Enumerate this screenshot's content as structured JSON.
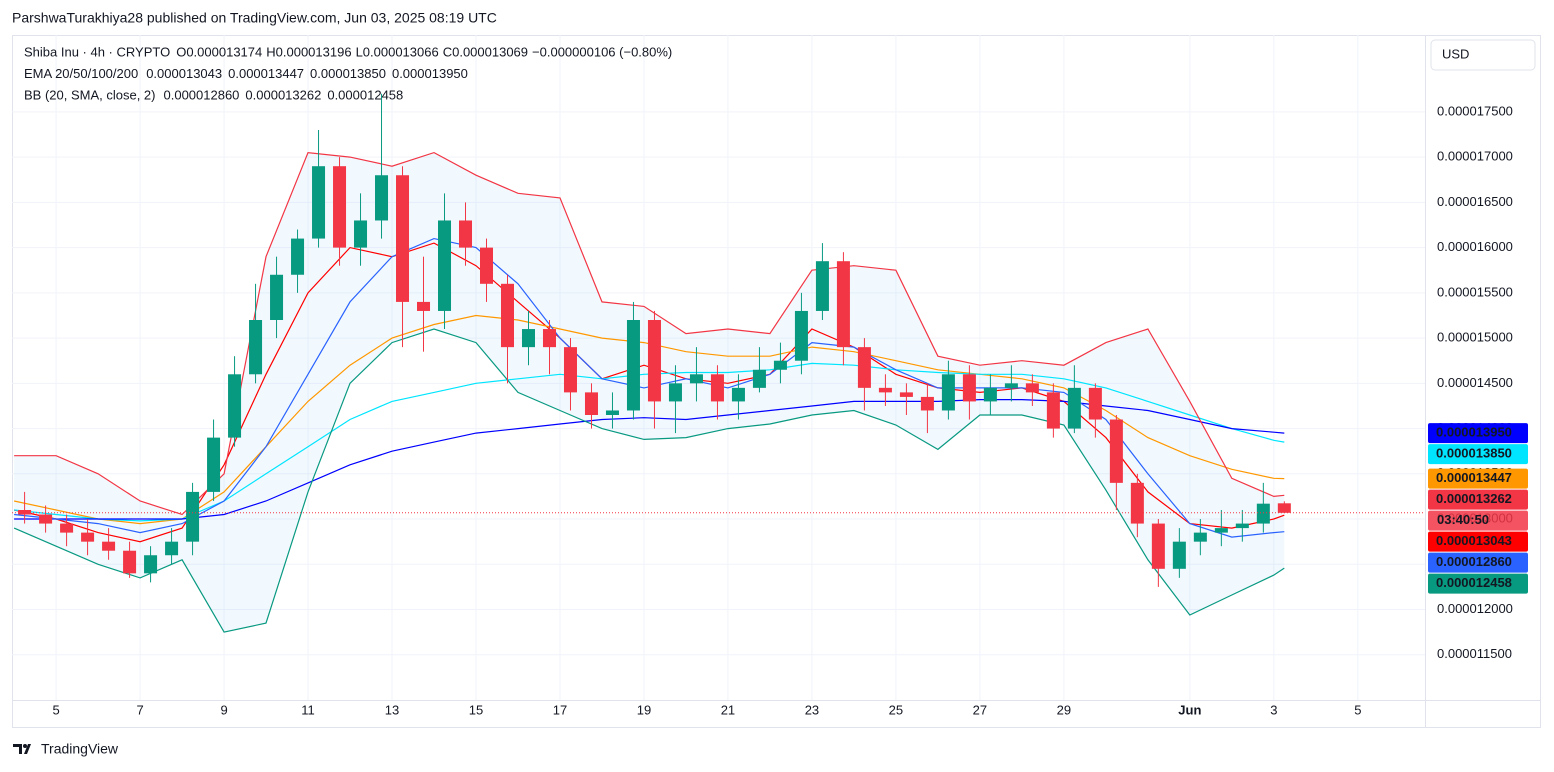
{
  "header": {
    "published": "ParshwaTurakhiya28 published on TradingView.com, Jun 03, 2025 08:19 UTC",
    "currency": "USD",
    "brand": "TradingView"
  },
  "chart_data": {
    "type": "candlestick",
    "title": "Shiba Inu · 4h · CRYPTO",
    "ohlc_legend": [
      {
        "key": "O",
        "value": "0.000013174"
      },
      {
        "key": "H",
        "value": "0.000013196"
      },
      {
        "key": "L",
        "value": "0.000013066"
      },
      {
        "key": "C",
        "value": "0.000013069"
      }
    ],
    "change": "−0.000000106 (−0.80%)",
    "countdown": "03:40:50",
    "up_color": "#089981",
    "down_color": "#f23645",
    "x": [
      4.25,
      4.75,
      5.25,
      5.75,
      6.25,
      6.75,
      7.25,
      7.75,
      8.25,
      8.75,
      9.25,
      9.75,
      10.25,
      10.75,
      11.25,
      11.75,
      12.25,
      12.75,
      13.25,
      13.75,
      14.25,
      14.75,
      15.25,
      15.75,
      16.25,
      16.75,
      17.25,
      17.75,
      18.25,
      18.75,
      19.25,
      19.75,
      20.25,
      20.75,
      21.25,
      21.75,
      22.25,
      22.75,
      23.25,
      23.75,
      24.25,
      24.75,
      25.25,
      25.75,
      26.25,
      26.75,
      27.25,
      27.75,
      28.25,
      28.75,
      29.25,
      29.75,
      30.25,
      30.75,
      31.25,
      31.75,
      32.25,
      32.75,
      33.25,
      33.75,
      34.25
    ],
    "open": [
      1.31e-05,
      1.305e-05,
      1.295e-05,
      1.285e-05,
      1.275e-05,
      1.265e-05,
      1.24e-05,
      1.26e-05,
      1.275e-05,
      1.33e-05,
      1.39e-05,
      1.46e-05,
      1.52e-05,
      1.57e-05,
      1.61e-05,
      1.69e-05,
      1.6e-05,
      1.63e-05,
      1.68e-05,
      1.54e-05,
      1.53e-05,
      1.63e-05,
      1.6e-05,
      1.56e-05,
      1.49e-05,
      1.51e-05,
      1.49e-05,
      1.44e-05,
      1.415e-05,
      1.42e-05,
      1.52e-05,
      1.43e-05,
      1.45e-05,
      1.46e-05,
      1.43e-05,
      1.445e-05,
      1.465e-05,
      1.475e-05,
      1.53e-05,
      1.585e-05,
      1.49e-05,
      1.445e-05,
      1.44e-05,
      1.435e-05,
      1.42e-05,
      1.46e-05,
      1.43e-05,
      1.445e-05,
      1.45e-05,
      1.44e-05,
      1.4e-05,
      1.445e-05,
      1.41e-05,
      1.34e-05,
      1.295e-05,
      1.245e-05,
      1.275e-05,
      1.285e-05,
      1.29e-05,
      1.295e-05,
      1.3174e-05
    ],
    "high": [
      1.33e-05,
      1.315e-05,
      1.305e-05,
      1.3e-05,
      1.29e-05,
      1.275e-05,
      1.27e-05,
      1.29e-05,
      1.34e-05,
      1.41e-05,
      1.48e-05,
      1.56e-05,
      1.59e-05,
      1.62e-05,
      1.73e-05,
      1.7e-05,
      1.66e-05,
      1.77e-05,
      1.69e-05,
      1.59e-05,
      1.66e-05,
      1.65e-05,
      1.61e-05,
      1.57e-05,
      1.53e-05,
      1.52e-05,
      1.5e-05,
      1.45e-05,
      1.44e-05,
      1.54e-05,
      1.53e-05,
      1.47e-05,
      1.49e-05,
      1.47e-05,
      1.46e-05,
      1.49e-05,
      1.495e-05,
      1.55e-05,
      1.605e-05,
      1.595e-05,
      1.5e-05,
      1.46e-05,
      1.45e-05,
      1.45e-05,
      1.475e-05,
      1.47e-05,
      1.46e-05,
      1.47e-05,
      1.46e-05,
      1.45e-05,
      1.47e-05,
      1.45e-05,
      1.415e-05,
      1.35e-05,
      1.3e-05,
      1.29e-05,
      1.3e-05,
      1.31e-05,
      1.31e-05,
      1.34e-05,
      1.3196e-05
    ],
    "low": [
      1.295e-05,
      1.285e-05,
      1.27e-05,
      1.26e-05,
      1.255e-05,
      1.235e-05,
      1.23e-05,
      1.25e-05,
      1.26e-05,
      1.32e-05,
      1.38e-05,
      1.45e-05,
      1.5e-05,
      1.55e-05,
      1.6e-05,
      1.58e-05,
      1.58e-05,
      1.61e-05,
      1.49e-05,
      1.485e-05,
      1.51e-05,
      1.58e-05,
      1.54e-05,
      1.45e-05,
      1.47e-05,
      1.46e-05,
      1.42e-05,
      1.4e-05,
      1.4e-05,
      1.41e-05,
      1.4e-05,
      1.395e-05,
      1.43e-05,
      1.41e-05,
      1.41e-05,
      1.44e-05,
      1.45e-05,
      1.46e-05,
      1.52e-05,
      1.47e-05,
      1.42e-05,
      1.425e-05,
      1.415e-05,
      1.395e-05,
      1.41e-05,
      1.41e-05,
      1.415e-05,
      1.43e-05,
      1.425e-05,
      1.39e-05,
      1.395e-05,
      1.39e-05,
      1.31e-05,
      1.28e-05,
      1.225e-05,
      1.235e-05,
      1.26e-05,
      1.27e-05,
      1.275e-05,
      1.285e-05,
      1.3066e-05
    ],
    "close": [
      1.305e-05,
      1.295e-05,
      1.285e-05,
      1.275e-05,
      1.265e-05,
      1.24e-05,
      1.26e-05,
      1.275e-05,
      1.33e-05,
      1.39e-05,
      1.46e-05,
      1.52e-05,
      1.57e-05,
      1.61e-05,
      1.69e-05,
      1.6e-05,
      1.63e-05,
      1.68e-05,
      1.54e-05,
      1.53e-05,
      1.63e-05,
      1.6e-05,
      1.56e-05,
      1.49e-05,
      1.51e-05,
      1.49e-05,
      1.44e-05,
      1.415e-05,
      1.42e-05,
      1.52e-05,
      1.43e-05,
      1.45e-05,
      1.46e-05,
      1.43e-05,
      1.445e-05,
      1.465e-05,
      1.475e-05,
      1.53e-05,
      1.585e-05,
      1.49e-05,
      1.445e-05,
      1.44e-05,
      1.435e-05,
      1.42e-05,
      1.46e-05,
      1.43e-05,
      1.445e-05,
      1.45e-05,
      1.44e-05,
      1.4e-05,
      1.445e-05,
      1.41e-05,
      1.34e-05,
      1.295e-05,
      1.245e-05,
      1.275e-05,
      1.285e-05,
      1.29e-05,
      1.295e-05,
      1.317e-05,
      1.3069e-05
    ],
    "xlim": [
      3.95,
      37.6
    ],
    "xticks": [
      5,
      7,
      9,
      11,
      13,
      15,
      17,
      19,
      21,
      23,
      25,
      27,
      29,
      {
        "value": 32,
        "label": "Jun"
      },
      {
        "value": 34,
        "label": "3"
      },
      {
        "value": 36,
        "label": "5"
      }
    ],
    "ylim": [
      1.1e-05,
      1.835e-05
    ],
    "yticks": [
      {
        "value": 1.15e-05,
        "label": "0.000011500"
      },
      {
        "value": 1.2e-05,
        "label": "0.000012000"
      },
      {
        "value": 1.25e-05,
        "label": "0.000012500"
      },
      {
        "value": 1.3e-05,
        "label": "0.000013000"
      },
      {
        "value": 1.35e-05,
        "label": "0.000013500"
      },
      {
        "value": 1.4e-05,
        "label": "0.000014000"
      },
      {
        "value": 1.45e-05,
        "label": "0.000014500"
      },
      {
        "value": 1.5e-05,
        "label": "0.000015000"
      },
      {
        "value": 1.55e-05,
        "label": "0.000015500"
      },
      {
        "value": 1.6e-05,
        "label": "0.000016000"
      },
      {
        "value": 1.65e-05,
        "label": "0.000016500"
      },
      {
        "value": 1.7e-05,
        "label": "0.000017000"
      },
      {
        "value": 1.75e-05,
        "label": "0.000017500"
      }
    ],
    "grid": true,
    "overlays": [
      {
        "name": "EMA 20/50/100/200",
        "x": [
          4,
          5,
          6,
          7,
          8,
          9,
          10,
          11,
          12,
          13,
          14,
          15,
          16,
          17,
          18,
          19,
          20,
          21,
          22,
          23,
          24,
          25,
          26,
          27,
          28,
          29,
          30,
          31,
          32,
          33,
          34,
          34.25
        ],
        "series": [
          {
            "color": "#ff0000",
            "value_label": "0.000013043",
            "values": [
              1.31e-05,
              1.3e-05,
              1.285e-05,
              1.275e-05,
              1.29e-05,
              1.36e-05,
              1.46e-05,
              1.55e-05,
              1.6e-05,
              1.59e-05,
              1.605e-05,
              1.58e-05,
              1.54e-05,
              1.5e-05,
              1.455e-05,
              1.47e-05,
              1.455e-05,
              1.45e-05,
              1.46e-05,
              1.51e-05,
              1.49e-05,
              1.46e-05,
              1.445e-05,
              1.44e-05,
              1.445e-05,
              1.43e-05,
              1.39e-05,
              1.33e-05,
              1.295e-05,
              1.29e-05,
              1.3e-05,
              1.3043e-05
            ]
          },
          {
            "color": "#ff9800",
            "value_label": "0.000013447",
            "values": [
              1.32e-05,
              1.31e-05,
              1.3e-05,
              1.295e-05,
              1.3e-05,
              1.33e-05,
              1.38e-05,
              1.43e-05,
              1.47e-05,
              1.5e-05,
              1.515e-05,
              1.525e-05,
              1.52e-05,
              1.51e-05,
              1.5e-05,
              1.495e-05,
              1.485e-05,
              1.48e-05,
              1.48e-05,
              1.49e-05,
              1.485e-05,
              1.475e-05,
              1.465e-05,
              1.46e-05,
              1.455e-05,
              1.445e-05,
              1.42e-05,
              1.39e-05,
              1.37e-05,
              1.355e-05,
              1.345e-05,
              1.3447e-05
            ]
          },
          {
            "color": "#00e5ff",
            "value_label": "0.000013850",
            "values": [
              1.31e-05,
              1.305e-05,
              1.3e-05,
              1.298e-05,
              1.3e-05,
              1.32e-05,
              1.35e-05,
              1.38e-05,
              1.41e-05,
              1.43e-05,
              1.44e-05,
              1.45e-05,
              1.455e-05,
              1.46e-05,
              1.455e-05,
              1.46e-05,
              1.462e-05,
              1.462e-05,
              1.465e-05,
              1.472e-05,
              1.47e-05,
              1.465e-05,
              1.462e-05,
              1.46e-05,
              1.46e-05,
              1.455e-05,
              1.445e-05,
              1.43e-05,
              1.415e-05,
              1.4e-05,
              1.387e-05,
              1.385e-05
            ]
          },
          {
            "color": "#0000ff",
            "value_label": "0.000013950",
            "values": [
              1.3e-05,
              1.3e-05,
              1.3e-05,
              1.3e-05,
              1.3e-05,
              1.305e-05,
              1.32e-05,
              1.34e-05,
              1.36e-05,
              1.375e-05,
              1.385e-05,
              1.395e-05,
              1.4e-05,
              1.405e-05,
              1.41e-05,
              1.412e-05,
              1.41e-05,
              1.415e-05,
              1.42e-05,
              1.425e-05,
              1.43e-05,
              1.43e-05,
              1.43e-05,
              1.432e-05,
              1.432e-05,
              1.43e-05,
              1.425e-05,
              1.42e-05,
              1.41e-05,
              1.4e-05,
              1.396e-05,
              1.395e-05
            ]
          }
        ]
      },
      {
        "name": "BB (20, SMA, close, 2)",
        "fill": "rgba(33,150,243,0.06)",
        "x": [
          4,
          5,
          6,
          7,
          8,
          9,
          10,
          11,
          12,
          13,
          14,
          15,
          16,
          17,
          18,
          19,
          20,
          21,
          22,
          23,
          24,
          25,
          26,
          27,
          28,
          29,
          30,
          31,
          32,
          33,
          34,
          34.25
        ],
        "series": [
          {
            "color": "#2962ff",
            "value_label": "0.000012860",
            "values": [
              1.305e-05,
              1.3e-05,
              1.295e-05,
              1.285e-05,
              1.295e-05,
              1.32e-05,
              1.38e-05,
              1.46e-05,
              1.54e-05,
              1.59e-05,
              1.61e-05,
              1.6e-05,
              1.56e-05,
              1.5e-05,
              1.455e-05,
              1.445e-05,
              1.455e-05,
              1.445e-05,
              1.46e-05,
              1.495e-05,
              1.49e-05,
              1.465e-05,
              1.445e-05,
              1.445e-05,
              1.445e-05,
              1.44e-05,
              1.41e-05,
              1.35e-05,
              1.295e-05,
              1.28e-05,
              1.285e-05,
              1.286e-05
            ]
          },
          {
            "color": "#f23645",
            "value_label": "0.000013262",
            "values": [
              1.37e-05,
              1.37e-05,
              1.35e-05,
              1.32e-05,
              1.305e-05,
              1.35e-05,
              1.59e-05,
              1.705e-05,
              1.7e-05,
              1.69e-05,
              1.705e-05,
              1.68e-05,
              1.66e-05,
              1.655e-05,
              1.54e-05,
              1.535e-05,
              1.505e-05,
              1.51e-05,
              1.505e-05,
              1.575e-05,
              1.58e-05,
              1.575e-05,
              1.48e-05,
              1.47e-05,
              1.475e-05,
              1.47e-05,
              1.495e-05,
              1.51e-05,
              1.43e-05,
              1.345e-05,
              1.325e-05,
              1.3262e-05
            ]
          },
          {
            "color": "#089981",
            "value_label": "0.000012458",
            "values": [
              1.29e-05,
              1.27e-05,
              1.25e-05,
              1.235e-05,
              1.255e-05,
              1.175e-05,
              1.185e-05,
              1.33e-05,
              1.45e-05,
              1.495e-05,
              1.51e-05,
              1.495e-05,
              1.44e-05,
              1.42e-05,
              1.4e-05,
              1.388e-05,
              1.39e-05,
              1.4e-05,
              1.405e-05,
              1.415e-05,
              1.42e-05,
              1.404e-05,
              1.377e-05,
              1.415e-05,
              1.415e-05,
              1.404e-05,
              1.332e-05,
              1.255e-05,
              1.194e-05,
              1.216e-05,
              1.238e-05,
              1.2458e-05
            ]
          }
        ]
      }
    ]
  }
}
